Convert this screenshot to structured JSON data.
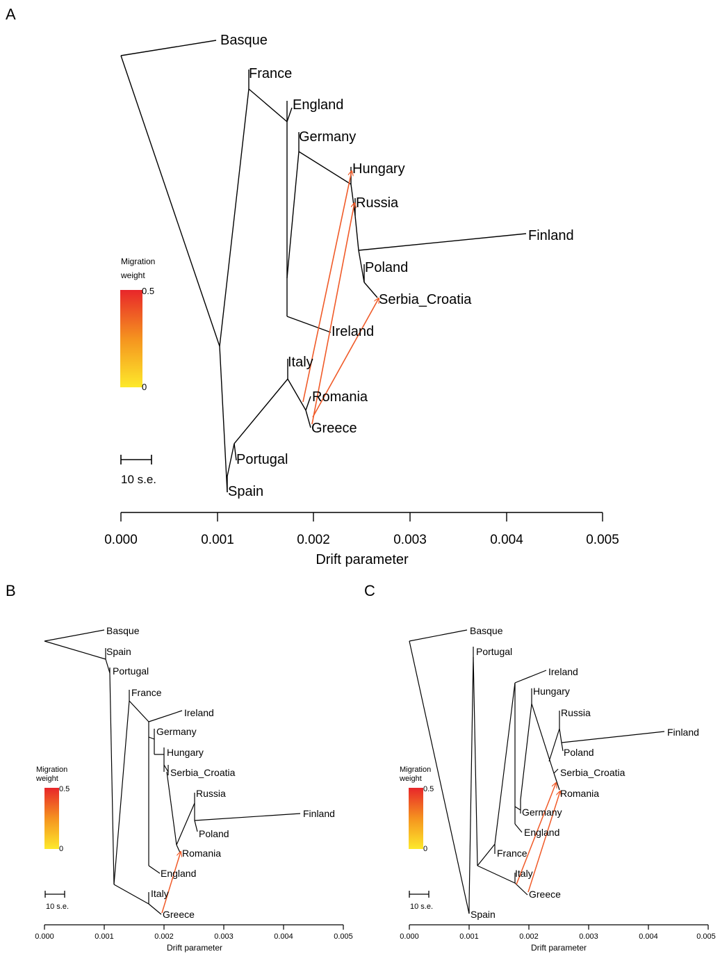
{
  "colors": {
    "branch": "#000000",
    "migration_arrow": "#f05a28",
    "gradient_top": "#e8262a",
    "gradient_mid": "#f5931f",
    "gradient_bottom": "#fde92b"
  },
  "panels": [
    {
      "letter": "A",
      "legend": {
        "title_line1": "Migration",
        "title_line2": "weight",
        "max": "0.5",
        "min": "0"
      },
      "scale_label": "10 s.e.",
      "axis": {
        "label": "Drift parameter",
        "ticks": [
          "0.000",
          "0.001",
          "0.002",
          "0.003",
          "0.004",
          "0.005"
        ]
      },
      "tips": [
        "Basque",
        "France",
        "England",
        "Germany",
        "Hungary",
        "Russia",
        "Finland",
        "Poland",
        "Serbia_Croatia",
        "Ireland",
        "Italy",
        "Romania",
        "Greece",
        "Portugal",
        "Spain"
      ],
      "migration_edges": [
        {
          "from": "Romania",
          "to": "Hungary",
          "weight": 0.35
        },
        {
          "from": "Greece",
          "to": "Russia",
          "weight": 0.35
        },
        {
          "from": "Romania",
          "to": "Serbia_Croatia",
          "weight": 0.35
        }
      ]
    },
    {
      "letter": "B",
      "legend": {
        "title_line1": "Migration",
        "title_line2": "weight",
        "max": "0.5",
        "min": "0"
      },
      "scale_label": "10 s.e.",
      "axis": {
        "label": "Drift parameter",
        "ticks": [
          "0.000",
          "0.001",
          "0.002",
          "0.003",
          "0.004",
          "0.005"
        ]
      },
      "tips": [
        "Basque",
        "Spain",
        "Portugal",
        "France",
        "Ireland",
        "Germany",
        "Hungary",
        "Serbia_Croatia",
        "Russia",
        "Finland",
        "Poland",
        "Romania",
        "England",
        "Italy",
        "Greece"
      ],
      "migration_edges": [
        {
          "from": "Greece",
          "to": "Romania",
          "weight": 0.35
        }
      ]
    },
    {
      "letter": "C",
      "legend": {
        "title_line1": "Migration",
        "title_line2": "weight",
        "max": "0.5",
        "min": "0"
      },
      "scale_label": "10 s.e.",
      "axis": {
        "label": "Drift parameter",
        "ticks": [
          "0.000",
          "0.001",
          "0.002",
          "0.003",
          "0.004",
          "0.005"
        ]
      },
      "tips": [
        "Basque",
        "Portugal",
        "Ireland",
        "Hungary",
        "Russia",
        "Finland",
        "Poland",
        "Serbia_Croatia",
        "Romania",
        "Germany",
        "England",
        "France",
        "Italy",
        "Greece",
        "Spain"
      ],
      "migration_edges": [
        {
          "from": "Italy",
          "to": "Serbia_Croatia",
          "weight": 0.35
        },
        {
          "from": "Greece",
          "to": "Romania",
          "weight": 0.35
        }
      ]
    }
  ]
}
